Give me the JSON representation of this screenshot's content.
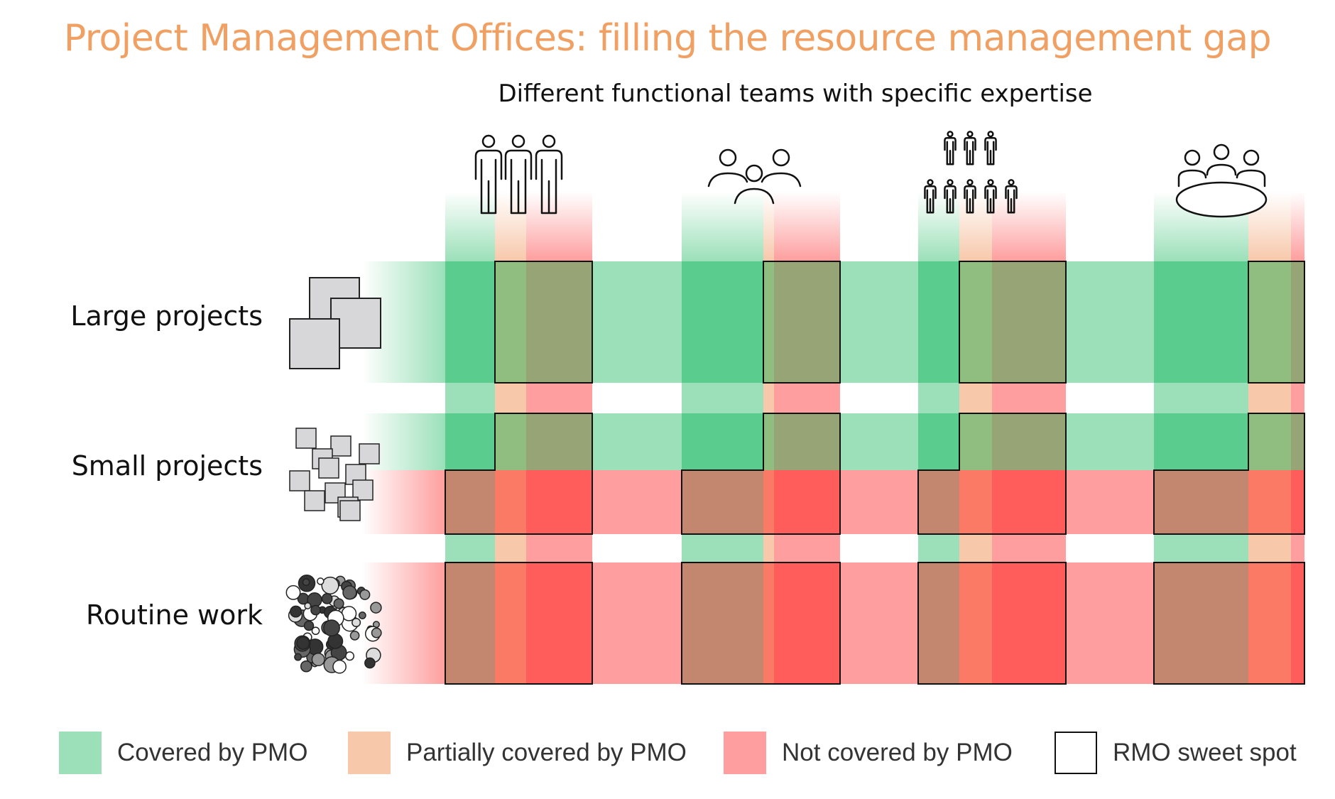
{
  "title": "Project Management Offices: filling the resource management gap",
  "subtitle": "Different functional teams with specific expertise",
  "rows": [
    {
      "label": "Large projects",
      "icon": "large-projects-squares-icon"
    },
    {
      "label": "Small projects",
      "icon": "small-projects-squares-icon"
    },
    {
      "label": "Routine work",
      "icon": "routine-work-circles-icon"
    }
  ],
  "teams": [
    {
      "icon": "three-standing-people-icon"
    },
    {
      "icon": "three-people-group-icon"
    },
    {
      "icon": "eight-people-crowd-icon"
    },
    {
      "icon": "meeting-table-people-icon"
    }
  ],
  "legend": [
    {
      "label": "Covered by PMO",
      "color": "#9be0b8"
    },
    {
      "label": "Partially covered by PMO",
      "color": "#f7c8aa"
    },
    {
      "label": "Not covered by PMO",
      "color": "#fe9e9e"
    },
    {
      "label": "RMO sweet spot",
      "color": "#ffffff"
    }
  ],
  "colors": {
    "covered_light": "#9be0b8",
    "covered_strong": "#5acc8e",
    "not_covered_light": "#fe9e9e",
    "not_covered_strong": "#ff5c5c",
    "partial": "#f7c8aa",
    "sweet_overlay_green": "#97a576",
    "sweet_overlay_red": "#c38770",
    "title": "#f0a062"
  }
}
